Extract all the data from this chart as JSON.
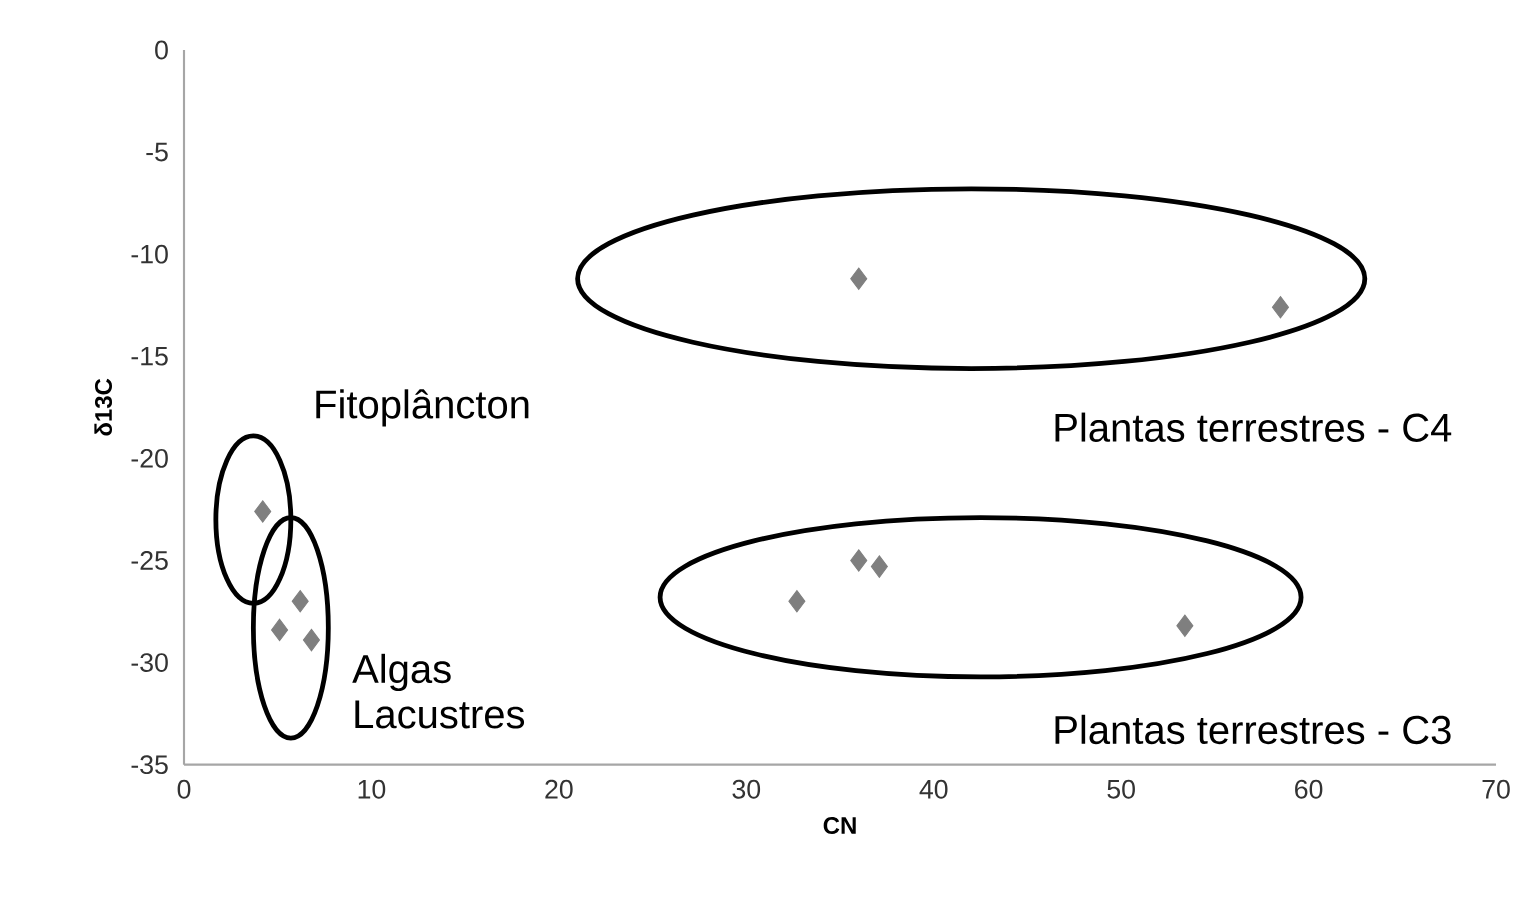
{
  "chart_data": {
    "type": "scatter",
    "xlabel": "CN",
    "ylabel": "δ13C",
    "x": [
      36.0,
      58.5,
      4.2,
      6.2,
      5.1,
      6.8,
      32.7,
      36.0,
      37.1,
      53.4
    ],
    "values": [
      -11.2,
      -12.6,
      -22.6,
      -27.0,
      -28.4,
      -28.9,
      -27.0,
      -25.0,
      -25.3,
      -28.2
    ],
    "color": "#7f7f7f",
    "marker": "diamond",
    "grid": false,
    "xlim": [
      0,
      70
    ],
    "ylim": [
      -35,
      0
    ],
    "xticks": [
      0,
      10,
      20,
      30,
      40,
      50,
      60,
      70
    ],
    "yticks": [
      0,
      -5,
      -10,
      -15,
      -20,
      -25,
      -30,
      -35
    ],
    "annotations": [
      {
        "text": "Fitoplâncton",
        "x": 4.2,
        "y": -22.6
      },
      {
        "text": "Algas Lacustres",
        "x": 6.2,
        "y": -28.4
      },
      {
        "text": "Plantas terrestres - C4",
        "x": 58.5,
        "y": -12.6
      },
      {
        "text": "Plantas terrestres - C3",
        "x": 53.4,
        "y": -28.2
      }
    ]
  }
}
